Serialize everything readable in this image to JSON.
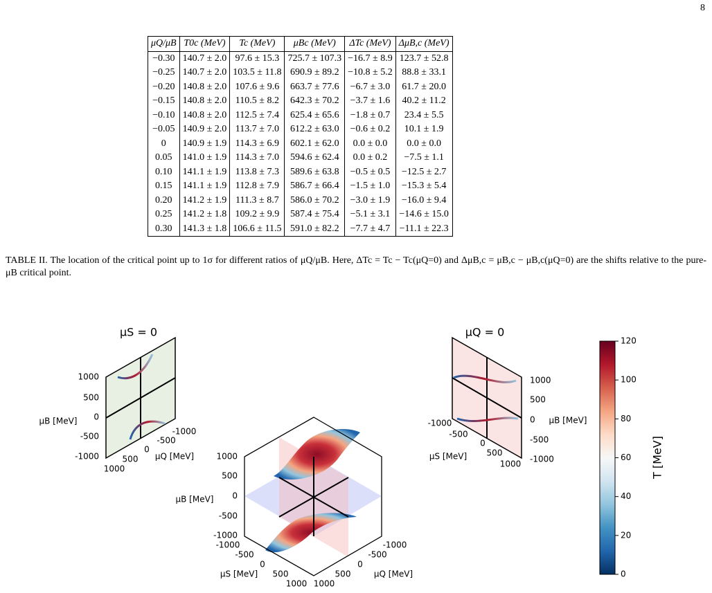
{
  "page_number": "8",
  "table": {
    "header": [
      "μQ/μB",
      "T0c (MeV)",
      "Tc (MeV)",
      "μBc (MeV)",
      "ΔTc (MeV)",
      "ΔμB,c (MeV)"
    ],
    "rows": [
      [
        "−0.30",
        "140.7 ± 2.0",
        "97.6 ± 15.3",
        "725.7 ± 107.3",
        "−16.7 ± 8.9",
        "123.7 ± 52.8"
      ],
      [
        "−0.25",
        "140.7 ± 2.0",
        "103.5 ± 11.8",
        "690.9 ± 89.2",
        "−10.8 ± 5.2",
        "88.8 ± 33.1"
      ],
      [
        "−0.20",
        "140.8 ± 2.0",
        "107.6 ± 9.6",
        "663.7 ± 77.6",
        "−6.7 ± 3.0",
        "61.7 ± 20.0"
      ],
      [
        "−0.15",
        "140.8 ± 2.0",
        "110.5 ± 8.2",
        "642.3 ± 70.2",
        "−3.7 ± 1.6",
        "40.2 ± 11.2"
      ],
      [
        "−0.10",
        "140.8 ± 2.0",
        "112.5 ± 7.4",
        "625.4 ± 65.6",
        "−1.8 ± 0.7",
        "23.4 ± 5.5"
      ],
      [
        "−0.05",
        "140.9 ± 2.0",
        "113.7 ± 7.0",
        "612.2 ± 63.0",
        "−0.6 ± 0.2",
        "10.1 ± 1.9"
      ],
      [
        "0",
        "140.9 ± 1.9",
        "114.3 ± 6.9",
        "602.1 ± 62.0",
        "0.0 ± 0.0",
        "0.0 ± 0.0"
      ],
      [
        "0.05",
        "141.0 ± 1.9",
        "114.3 ± 7.0",
        "594.6 ± 62.4",
        "0.0 ± 0.2",
        "−7.5 ± 1.1"
      ],
      [
        "0.10",
        "141.1 ± 1.9",
        "113.8 ± 7.3",
        "589.6 ± 63.8",
        "−0.5 ± 0.5",
        "−12.5 ± 2.7"
      ],
      [
        "0.15",
        "141.1 ± 1.9",
        "112.8 ± 7.9",
        "586.7 ± 66.4",
        "−1.5 ± 1.0",
        "−15.3 ± 5.4"
      ],
      [
        "0.20",
        "141.2 ± 1.9",
        "111.3 ± 8.7",
        "586.0 ± 70.2",
        "−3.0 ± 1.9",
        "−16.0 ± 9.4"
      ],
      [
        "0.25",
        "141.2 ± 1.8",
        "109.2 ± 9.9",
        "587.4 ± 75.4",
        "−5.1 ± 3.1",
        "−14.6 ± 15.0"
      ],
      [
        "0.30",
        "141.3 ± 1.8",
        "106.6 ± 11.5",
        "591.0 ± 82.2",
        "−7.7 ± 4.7",
        "−11.1 ± 22.3"
      ]
    ]
  },
  "caption": "TABLE II. The location of the critical point up to 1σ for different ratios of μQ/μB. Here, ΔTc = Tc − Tc(μQ=0) and ΔμB,c = μB,c − μB,c(μQ=0) are the shifts relative to the pure-μB critical point.",
  "figure": {
    "left_panel": {
      "title": "μS = 0",
      "y_label": "μB [MeV]",
      "x_label": "μQ [MeV]",
      "y_ticks": [
        1000,
        500,
        0,
        -500,
        -1000
      ],
      "x_ticks": [
        -1000,
        -500,
        0,
        500,
        1000
      ]
    },
    "center_panel": {
      "z_label": "μB [MeV]",
      "x_label": "μS [MeV]",
      "y_label": "μQ [MeV]",
      "z_ticks": [
        1000,
        500,
        0,
        -500,
        -1000
      ],
      "x_ticks": [
        -1000,
        -500,
        0,
        500,
        1000
      ],
      "y_ticks": [
        1000,
        500,
        0,
        -500,
        -1000
      ]
    },
    "right_panel": {
      "title": "μQ = 0",
      "y_label": "μB [MeV]",
      "x_label": "μS [MeV]",
      "y_ticks": [
        1000,
        500,
        0,
        -500,
        -1000
      ],
      "x_ticks": [
        -1000,
        -500,
        0,
        500,
        1000
      ]
    },
    "colorbar": {
      "label": "T [MeV]",
      "clim": [
        0,
        120
      ],
      "ticks": [
        0,
        20,
        40,
        60,
        80,
        100,
        120
      ]
    }
  }
}
